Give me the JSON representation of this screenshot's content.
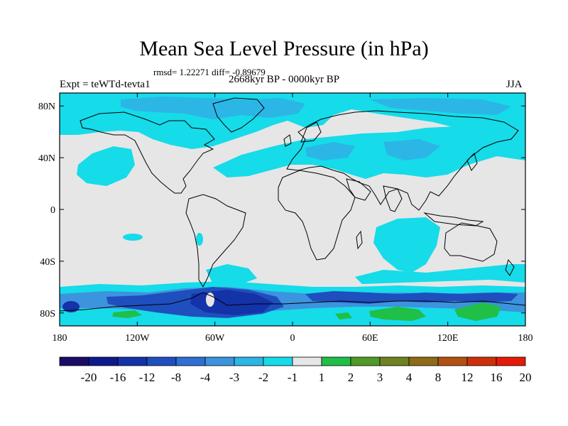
{
  "title": "Mean Sea Level Pressure (in hPa)",
  "stats": "rmsd= 1.22271 diff= -0.89679",
  "experiment": "Expt = teWTd-tevta1",
  "period": "2668kyr BP - 0000kyr BP",
  "season": "JJA",
  "axes": {
    "x_ticks": [
      {
        "lon": -180,
        "label": "180"
      },
      {
        "lon": -120,
        "label": "120W"
      },
      {
        "lon": -60,
        "label": "60W"
      },
      {
        "lon": 0,
        "label": "0"
      },
      {
        "lon": 60,
        "label": "60E"
      },
      {
        "lon": 120,
        "label": "120E"
      },
      {
        "lon": 180,
        "label": "180"
      }
    ],
    "y_ticks": [
      {
        "lat": 80,
        "label": "80N"
      },
      {
        "lat": 40,
        "label": "40N"
      },
      {
        "lat": 0,
        "label": "0"
      },
      {
        "lat": -40,
        "label": "40S"
      },
      {
        "lat": -80,
        "label": "80S"
      }
    ],
    "lat_range": [
      -90,
      90
    ],
    "lon_range": [
      -180,
      180
    ]
  },
  "colorbar": {
    "colors": [
      "#1a0c66",
      "#0d1a8c",
      "#1433a8",
      "#1f4fbe",
      "#2f6fd2",
      "#3c93de",
      "#2bb6e6",
      "#16dbe9",
      "#e6e6e6",
      "#1fbf48",
      "#4f9a28",
      "#6f8222",
      "#8f6a18",
      "#b25012",
      "#cf300c",
      "#e61a08"
    ],
    "labels": [
      "-20",
      "-16",
      "-12",
      "-8",
      "-4",
      "-3",
      "-2",
      "-1",
      "1",
      "2",
      "3",
      "4",
      "8",
      "12",
      "16",
      "20"
    ]
  },
  "colors": {
    "neutral": "#e6e6e6",
    "light_blue": "#16dbe9",
    "mid_blue": "#2bb6e6",
    "blue": "#3c93de",
    "dark_blue": "#1f4fbe",
    "deep_blue": "#1433a8",
    "green": "#1fbf48",
    "coast": "#000000"
  }
}
